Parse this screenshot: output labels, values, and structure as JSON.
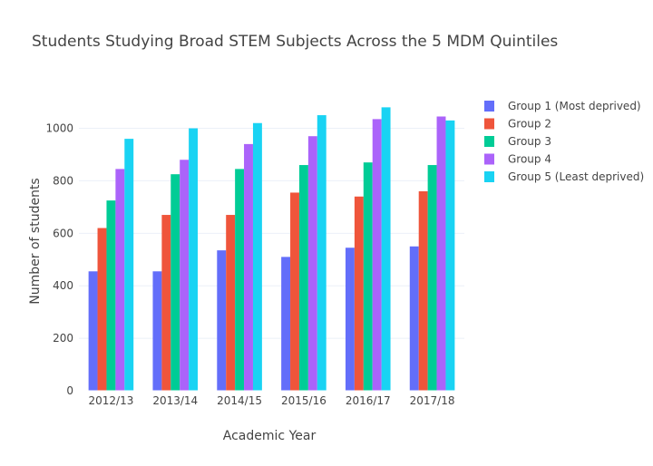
{
  "chart_data": {
    "type": "bar",
    "title": "Students Studying Broad STEM Subjects Across the 5 MDM Quintiles",
    "xlabel": "Academic Year",
    "ylabel": "Number of students",
    "categories": [
      "2012/13",
      "2013/14",
      "2014/15",
      "2015/16",
      "2016/17",
      "2017/18"
    ],
    "ylim": [
      0,
      1140
    ],
    "yticks": [
      0,
      200,
      400,
      600,
      800,
      1000
    ],
    "grid": true,
    "legend_position": "top-right",
    "series": [
      {
        "name": "Group 1 (Most deprived)",
        "color": "#636efa",
        "values": [
          455,
          455,
          535,
          510,
          545,
          550
        ]
      },
      {
        "name": "Group 2",
        "color": "#ef553b",
        "values": [
          620,
          670,
          670,
          755,
          740,
          760
        ]
      },
      {
        "name": "Group 3",
        "color": "#00cc96",
        "values": [
          725,
          825,
          845,
          860,
          870,
          860
        ]
      },
      {
        "name": "Group 4",
        "color": "#ab63fa",
        "values": [
          845,
          880,
          940,
          970,
          1035,
          1045
        ]
      },
      {
        "name": "Group 5 (Least deprived)",
        "color": "#19d3f3",
        "values": [
          960,
          1000,
          1020,
          1050,
          1080,
          1030
        ]
      }
    ]
  }
}
